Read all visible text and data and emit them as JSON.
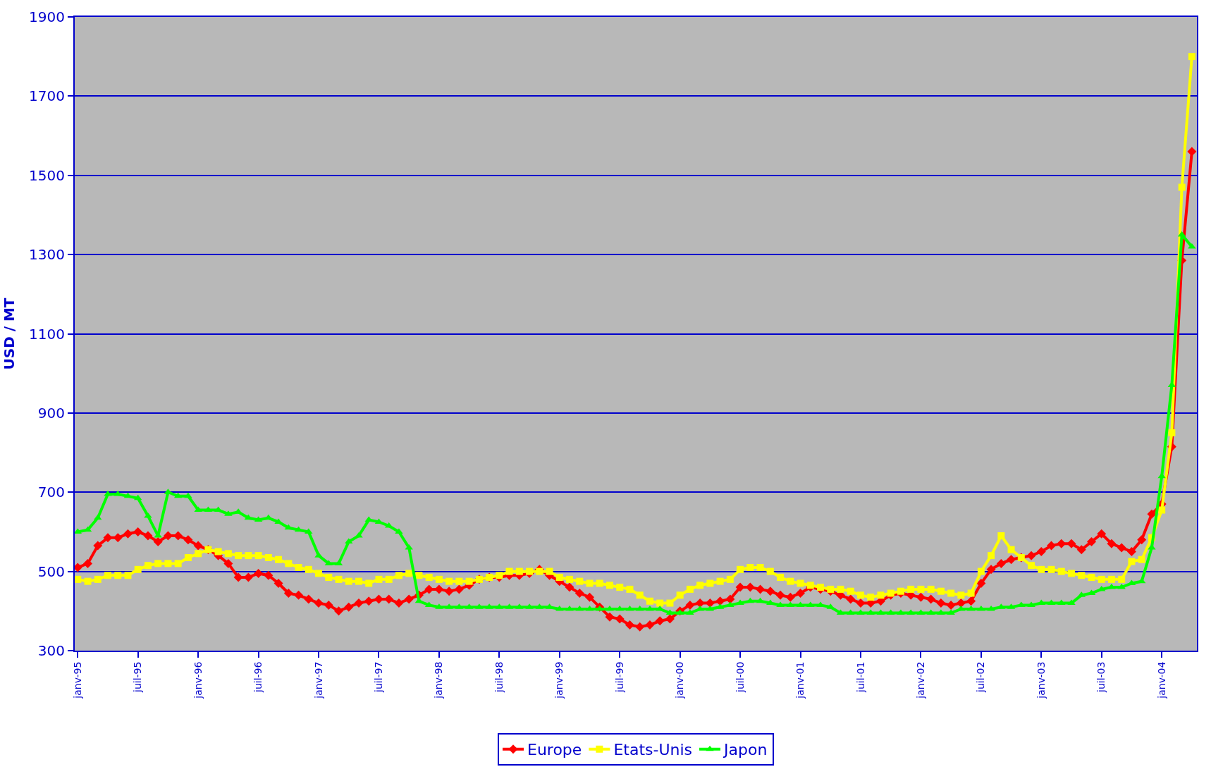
{
  "chart_data": {
    "type": "line",
    "ylabel": "USD / MT",
    "categories": [
      "janv-95",
      null,
      null,
      null,
      null,
      null,
      "juil-95",
      null,
      null,
      null,
      null,
      null,
      "janv-96",
      null,
      null,
      null,
      null,
      null,
      "juil-96",
      null,
      null,
      null,
      null,
      null,
      "janv-97",
      null,
      null,
      null,
      null,
      null,
      "juil-97",
      null,
      null,
      null,
      null,
      null,
      "janv-98",
      null,
      null,
      null,
      null,
      null,
      "juil-98",
      null,
      null,
      null,
      null,
      null,
      "janv-99",
      null,
      null,
      null,
      null,
      null,
      "juil-99",
      null,
      null,
      null,
      null,
      null,
      "janv-00",
      null,
      null,
      null,
      null,
      null,
      "juil-00",
      null,
      null,
      null,
      null,
      null,
      "janv-01",
      null,
      null,
      null,
      null,
      null,
      "juil-01",
      null,
      null,
      null,
      null,
      null,
      "janv-02",
      null,
      null,
      null,
      null,
      null,
      "juil-02",
      null,
      null,
      null,
      null,
      null,
      "janv-03",
      null,
      null,
      null,
      null,
      null,
      "juil-03",
      null,
      null,
      null,
      null,
      null,
      "janv-04",
      null,
      null,
      null
    ],
    "series": [
      {
        "name": "Europe",
        "color": "#ff0000",
        "marker": "diamond",
        "values": [
          510,
          520,
          565,
          585,
          585,
          595,
          600,
          590,
          575,
          590,
          590,
          580,
          565,
          555,
          540,
          520,
          485,
          485,
          495,
          490,
          470,
          445,
          440,
          430,
          420,
          415,
          400,
          410,
          420,
          425,
          430,
          430,
          420,
          430,
          440,
          455,
          455,
          450,
          455,
          465,
          480,
          485,
          485,
          490,
          490,
          495,
          505,
          490,
          475,
          460,
          445,
          435,
          410,
          385,
          380,
          365,
          360,
          365,
          375,
          380,
          400,
          415,
          420,
          420,
          425,
          430,
          460,
          460,
          455,
          450,
          440,
          435,
          445,
          460,
          455,
          450,
          440,
          430,
          420,
          420,
          425,
          440,
          445,
          440,
          435,
          430,
          420,
          415,
          420,
          425,
          470,
          505,
          520,
          530,
          535,
          540,
          550,
          565,
          570,
          570,
          555,
          575,
          595,
          570,
          560,
          550,
          580,
          645,
          670,
          815,
          1285,
          1560
        ]
      },
      {
        "name": "Etats-Unis",
        "color": "#ffff00",
        "marker": "square",
        "values": [
          480,
          475,
          480,
          490,
          490,
          490,
          505,
          515,
          520,
          520,
          520,
          535,
          545,
          555,
          550,
          545,
          540,
          540,
          540,
          535,
          530,
          520,
          510,
          505,
          495,
          485,
          480,
          475,
          475,
          470,
          480,
          480,
          490,
          495,
          490,
          485,
          480,
          475,
          475,
          475,
          480,
          485,
          490,
          500,
          500,
          500,
          500,
          500,
          485,
          480,
          475,
          470,
          470,
          465,
          460,
          455,
          440,
          425,
          420,
          420,
          440,
          455,
          465,
          470,
          475,
          480,
          505,
          510,
          510,
          500,
          485,
          475,
          470,
          465,
          460,
          455,
          455,
          450,
          440,
          435,
          440,
          445,
          450,
          455,
          455,
          455,
          450,
          445,
          440,
          445,
          500,
          540,
          590,
          555,
          535,
          515,
          505,
          505,
          500,
          495,
          490,
          485,
          480,
          480,
          480,
          525,
          530,
          585,
          655,
          850,
          1470,
          1800
        ]
      },
      {
        "name": "Japon",
        "color": "#00ff00",
        "marker": "triangle",
        "values": [
          600,
          605,
          635,
          695,
          695,
          690,
          685,
          640,
          590,
          700,
          690,
          690,
          655,
          655,
          655,
          645,
          650,
          635,
          630,
          635,
          625,
          610,
          605,
          600,
          540,
          520,
          520,
          575,
          590,
          630,
          625,
          615,
          600,
          560,
          425,
          415,
          410,
          410,
          410,
          410,
          410,
          410,
          410,
          410,
          410,
          410,
          410,
          410,
          405,
          405,
          405,
          405,
          405,
          405,
          405,
          405,
          405,
          405,
          405,
          395,
          395,
          395,
          405,
          405,
          410,
          415,
          420,
          425,
          425,
          420,
          415,
          415,
          415,
          415,
          415,
          410,
          395,
          395,
          395,
          395,
          395,
          395,
          395,
          395,
          395,
          395,
          395,
          395,
          405,
          405,
          405,
          405,
          410,
          410,
          415,
          415,
          420,
          420,
          420,
          420,
          440,
          445,
          455,
          460,
          460,
          470,
          475,
          560,
          740,
          970,
          1350,
          1320
        ]
      }
    ],
    "ylim": [
      300,
      1900
    ],
    "yticks": [
      300,
      500,
      700,
      900,
      1100,
      1300,
      1500,
      1700,
      1900
    ],
    "grid": "y",
    "legend": "bottom",
    "line_style": "solid"
  }
}
